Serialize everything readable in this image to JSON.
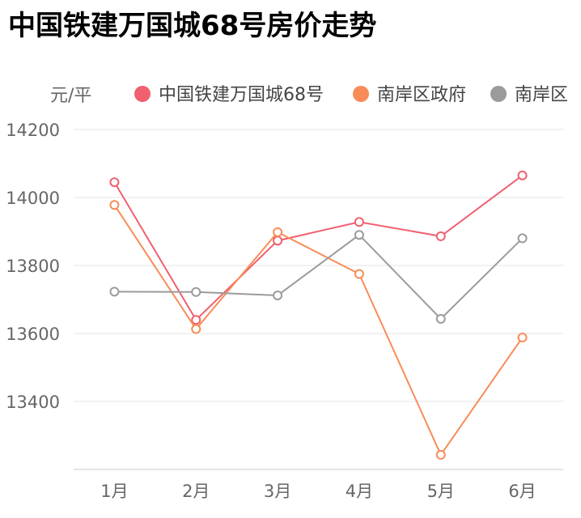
{
  "title": "中国铁建万国城68号房价走势",
  "chart_data": {
    "type": "line",
    "title": "中国铁建万国城68号房价走势",
    "ylabel": "元/平",
    "xlabel": "",
    "categories": [
      "1月",
      "2月",
      "3月",
      "4月",
      "5月",
      "6月"
    ],
    "ylim": [
      13200,
      14200
    ],
    "yticks": [
      14200,
      14000,
      13800,
      13600,
      13400
    ],
    "grid": true,
    "legend_position": "top",
    "series": [
      {
        "name": "中国铁建万国城68号",
        "color": "#f0606f",
        "values": [
          14045,
          13640,
          13873,
          13928,
          13886,
          14065
        ]
      },
      {
        "name": "南岸区政府",
        "color": "#f88c58",
        "values": [
          13978,
          13613,
          13898,
          13775,
          13243,
          13588
        ]
      },
      {
        "name": "南岸区",
        "color": "#9b9b9b",
        "values": [
          13723,
          13722,
          13712,
          13890,
          13643,
          13880
        ]
      }
    ]
  }
}
